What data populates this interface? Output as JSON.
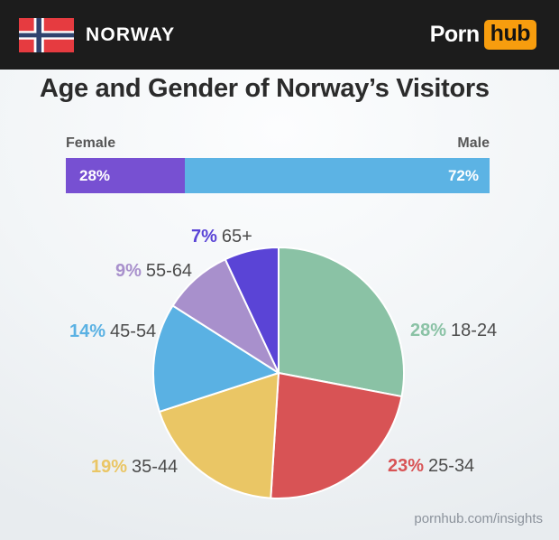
{
  "header": {
    "country": "NORWAY",
    "logo_part1": "Porn",
    "logo_part2": "hub",
    "colors": {
      "bar_bg": "#1c1c1c",
      "hub_badge": "#f79d0e",
      "flag_red": "#e63b40",
      "flag_navy": "#30436e",
      "flag_white": "#ffffff"
    }
  },
  "title": "Age and Gender of Norway’s Visitors",
  "chart_data": [
    {
      "id": "gender-split",
      "type": "bar",
      "subtype": "horizontal-stacked",
      "categories": [
        "Female",
        "Male"
      ],
      "values": [
        28,
        72
      ],
      "value_labels": [
        "28%",
        "72%"
      ],
      "colors": [
        "#7750d2",
        "#5cb3e4"
      ],
      "xlim": [
        0,
        100
      ],
      "grid": false,
      "legend_position": "labels-above-bar-ends"
    },
    {
      "id": "age-distribution",
      "type": "pie",
      "categories": [
        "18-24",
        "25-34",
        "35-44",
        "45-54",
        "55-64",
        "65+"
      ],
      "values": [
        28,
        23,
        19,
        14,
        9,
        7
      ],
      "pct_labels": [
        "28%",
        "23%",
        "19%",
        "14%",
        "9%",
        "7%"
      ],
      "colors": [
        "#8ac2a5",
        "#d85355",
        "#eac665",
        "#5ab1e3",
        "#a890cc",
        "#5a44d6"
      ],
      "start_angle": "top",
      "direction": "clockwise",
      "slice_border_color": "#ffffff",
      "label_text_color": "#4c4c4c"
    }
  ],
  "footer": {
    "link": "pornhub.com/insights"
  }
}
